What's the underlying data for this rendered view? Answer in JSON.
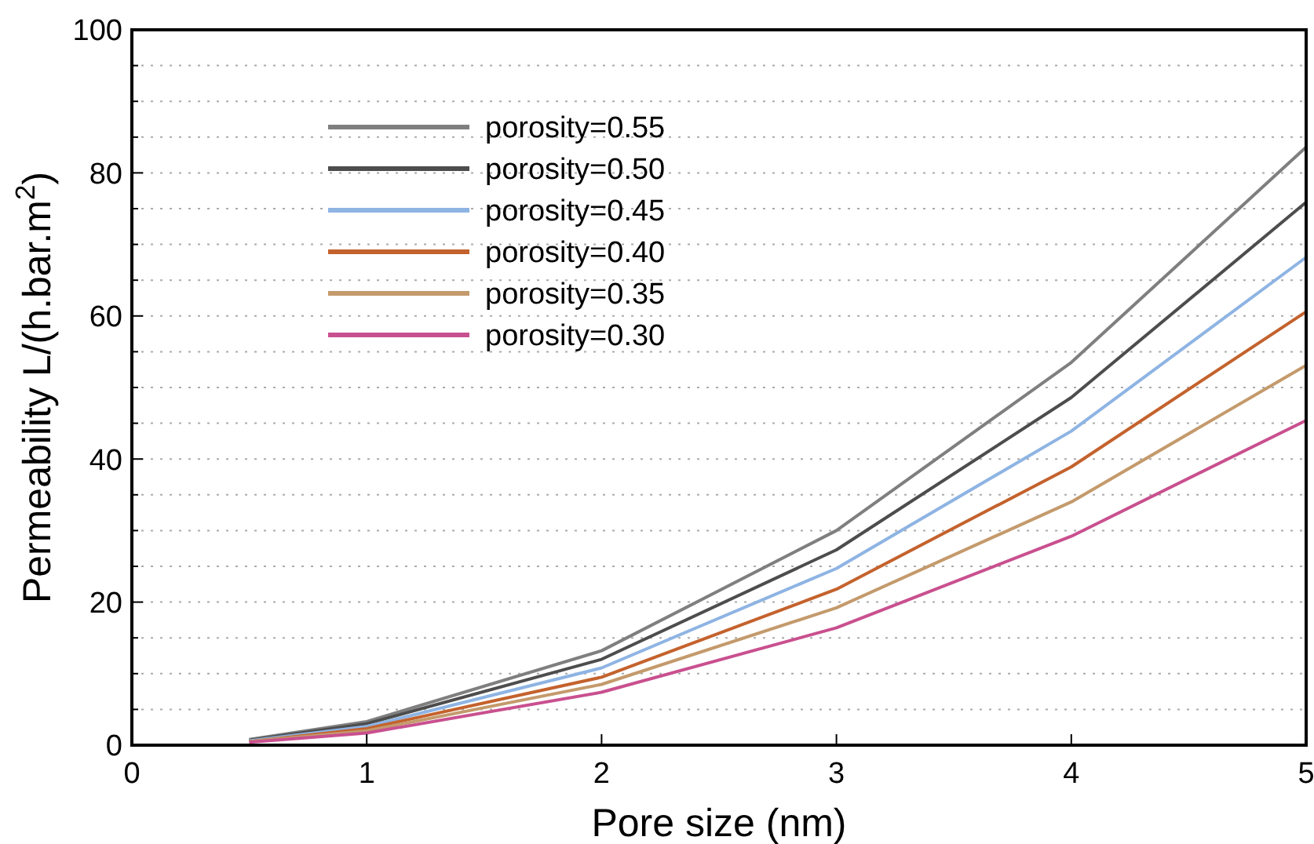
{
  "chart_data": {
    "type": "line",
    "xlabel": "Pore size (nm)",
    "ylabel": "Permeability  L/(h.bar.m$^{2}$)",
    "x": [
      0.5,
      1,
      2,
      3,
      4,
      5
    ],
    "xlim": [
      0,
      5
    ],
    "xticks": [
      0,
      1,
      2,
      3,
      4,
      5
    ],
    "ylim": [
      0,
      100
    ],
    "yticks": [
      0,
      {
        "value": 5,
        "label": null
      },
      {
        "value": 10,
        "label": null
      },
      {
        "value": 15,
        "label": null
      },
      20,
      {
        "value": 25,
        "label": null
      },
      {
        "value": 30,
        "label": null
      },
      {
        "value": 35,
        "label": null
      },
      40,
      {
        "value": 45,
        "label": null
      },
      {
        "value": 50,
        "label": null
      },
      {
        "value": 55,
        "label": null
      },
      60,
      {
        "value": 65,
        "label": null
      },
      {
        "value": 70,
        "label": null
      },
      {
        "value": 75,
        "label": null
      },
      80,
      {
        "value": 85,
        "label": null
      },
      {
        "value": 90,
        "label": null
      },
      {
        "value": 95,
        "label": null
      },
      100
    ],
    "grid": "y",
    "legend": "top left",
    "line_style": "solid",
    "marker": "none",
    "series": [
      {
        "name": "porosity=0.55",
        "color": "#7f7f7f",
        "values": [
          0.8,
          3.3,
          13.2,
          30.0,
          53.5,
          83.6
        ]
      },
      {
        "name": "porosity=0.50",
        "color": "#4d4d4d",
        "values": [
          0.7,
          3.0,
          12.0,
          27.3,
          48.6,
          75.9
        ]
      },
      {
        "name": "porosity=0.45",
        "color": "#8eb4e3",
        "values": [
          0.6,
          2.6,
          10.8,
          24.7,
          43.9,
          68.2
        ]
      },
      {
        "name": "porosity=0.40",
        "color": "#c4622d",
        "values": [
          0.5,
          2.3,
          9.5,
          21.8,
          38.9,
          60.6
        ]
      },
      {
        "name": "porosity=0.35",
        "color": "#c49a6c",
        "values": [
          0.5,
          2.0,
          8.5,
          19.2,
          34.0,
          53.1
        ]
      },
      {
        "name": "porosity=0.30",
        "color": "#c9508f",
        "values": [
          0.4,
          1.7,
          7.4,
          16.4,
          29.2,
          45.4
        ]
      }
    ]
  }
}
